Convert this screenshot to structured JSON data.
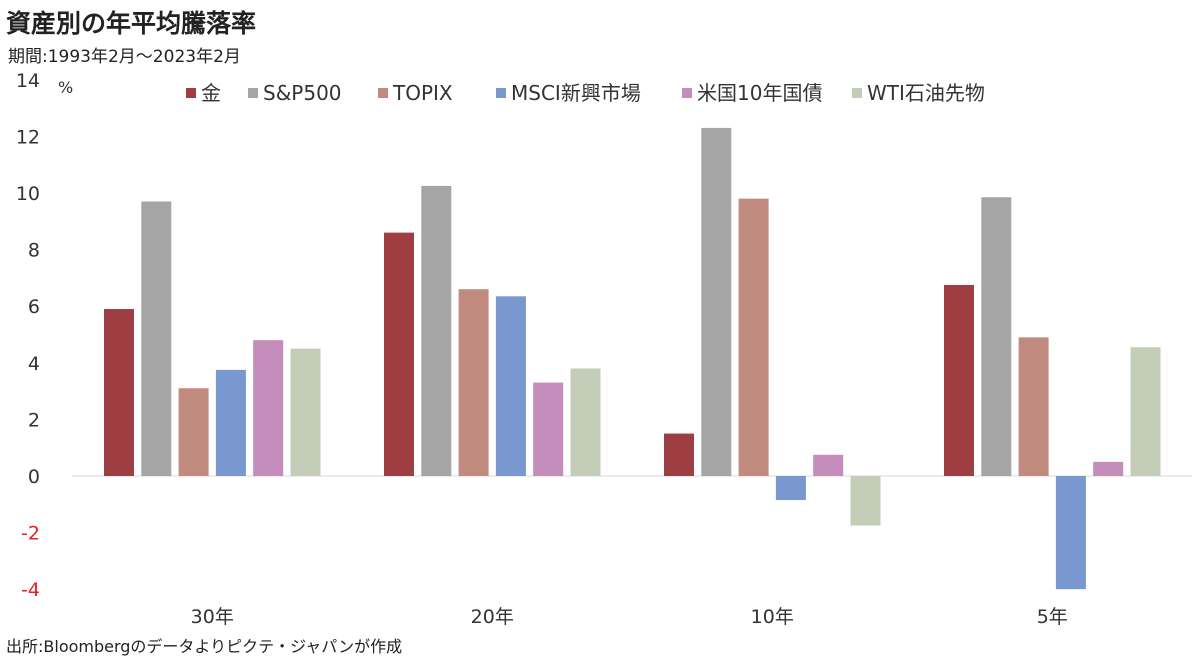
{
  "title": "資産別の年平均騰落率",
  "subtitle": "期間:1993年2月～2023年2月",
  "source": "出所:Bloombergのデータよりピクテ・ジャパンが作成",
  "chart_data": {
    "type": "bar",
    "ylabel": "%",
    "ylim": [
      -4,
      14
    ],
    "yticks": [
      14,
      12,
      10,
      8,
      6,
      4,
      2,
      0,
      -2,
      -4
    ],
    "negative_tick_color": "#e8201c",
    "grid": false,
    "legend": "top",
    "categories": [
      "30年",
      "20年",
      "10年",
      "5年"
    ],
    "series": [
      {
        "name": "金",
        "color": "#9e3d42",
        "values": [
          5.9,
          8.6,
          1.5,
          6.75
        ]
      },
      {
        "name": "S&P500",
        "color": "#a5a5a5",
        "values": [
          9.7,
          10.25,
          12.3,
          9.85
        ]
      },
      {
        "name": "TOPIX",
        "color": "#c08a7e",
        "values": [
          3.1,
          6.6,
          9.8,
          4.9
        ]
      },
      {
        "name": "MSCI新興市場",
        "color": "#7898cf",
        "values": [
          3.75,
          6.35,
          -0.85,
          -4.0
        ]
      },
      {
        "name": "米国10年国債",
        "color": "#c48dbc",
        "values": [
          4.8,
          3.3,
          0.75,
          0.5
        ]
      },
      {
        "name": "WTI石油先物",
        "color": "#c3cdb8",
        "values": [
          4.5,
          3.8,
          -1.75,
          4.55
        ]
      }
    ]
  }
}
